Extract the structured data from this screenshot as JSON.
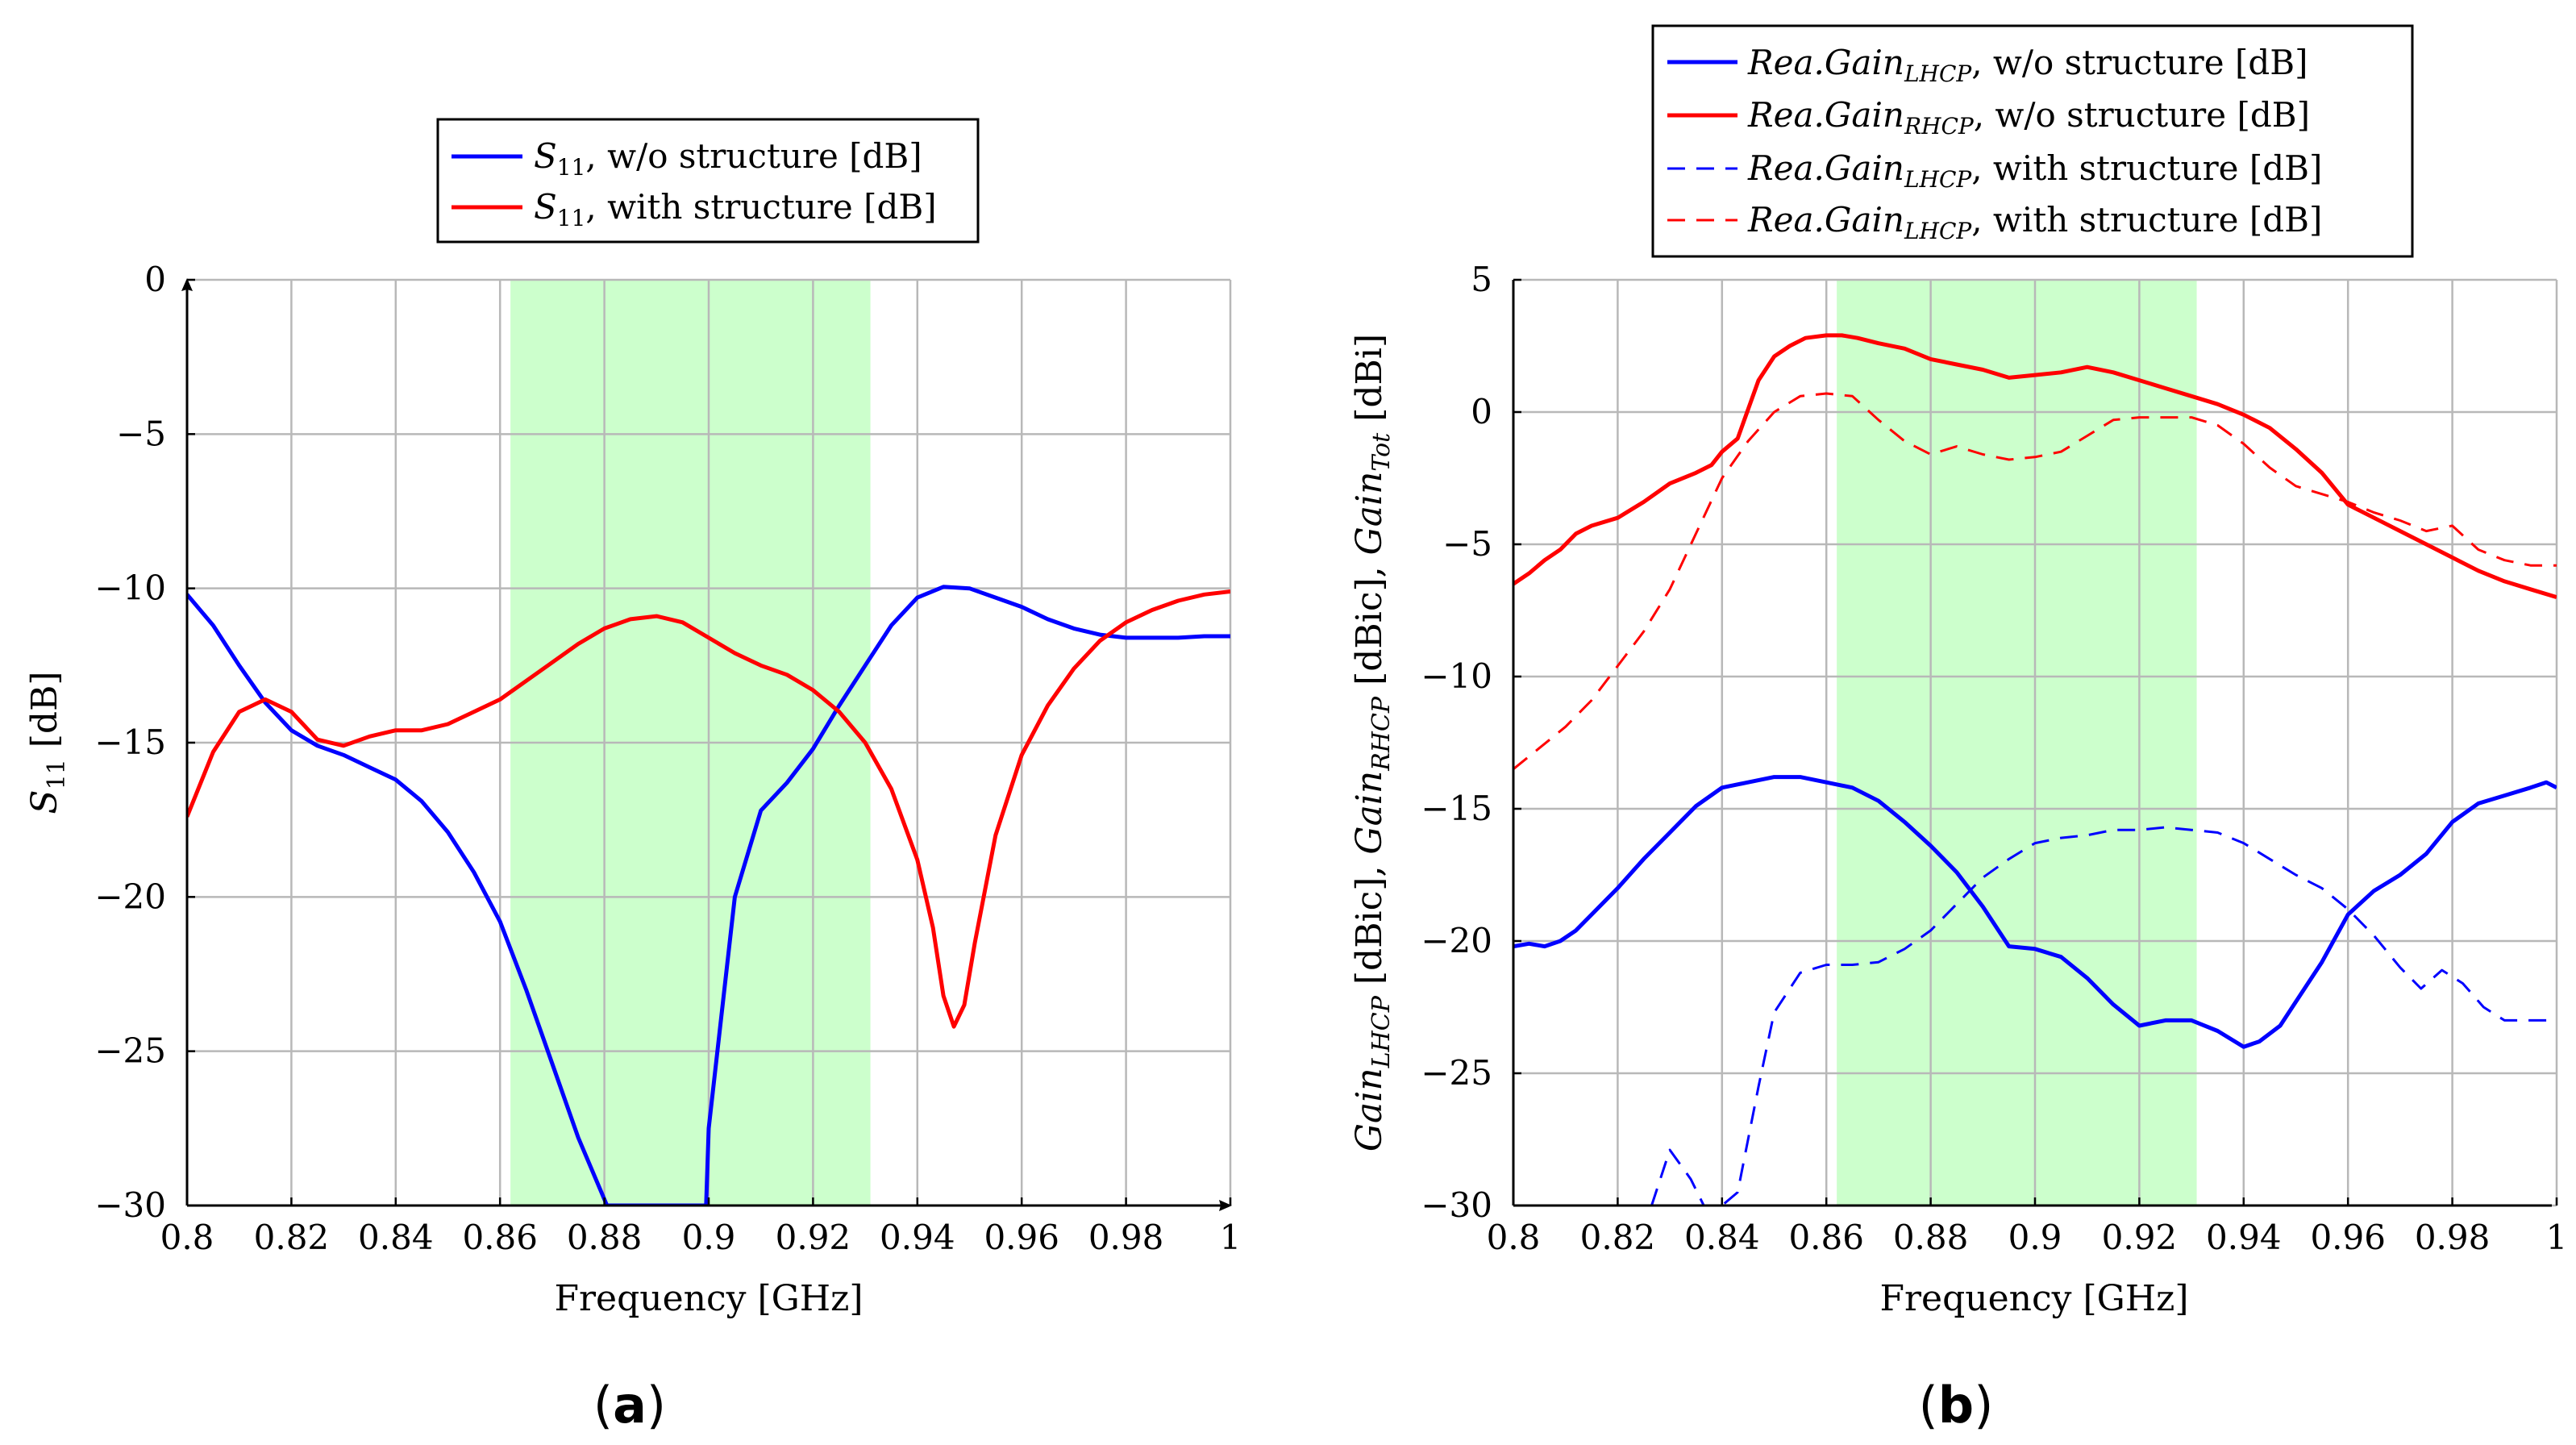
{
  "chart_data": [
    {
      "type": "line",
      "id": "a",
      "caption_open": "(",
      "caption_letter": "a",
      "caption_close": ")",
      "title": "",
      "xlabel": "Frequency [GHz]",
      "ylabel": "S11 [dB]",
      "xlim": [
        0.8,
        1.0
      ],
      "ylim": [
        -30,
        0
      ],
      "xticks": [
        0.8,
        0.82,
        0.84,
        0.86,
        0.88,
        0.9,
        0.92,
        0.94,
        0.96,
        0.98,
        1.0
      ],
      "xtick_labels": [
        "0.8",
        "0.82",
        "0.84",
        "0.86",
        "0.88",
        "0.9",
        "0.92",
        "0.94",
        "0.96",
        "0.98",
        "1"
      ],
      "yticks": [
        0,
        -5,
        -10,
        -15,
        -20,
        -25,
        -30
      ],
      "ytick_labels": [
        "0",
        "−5",
        "−10",
        "−15",
        "−20",
        "−25",
        "−30"
      ],
      "grid": true,
      "legend_position": "top-center",
      "shaded_band": {
        "x_start": 0.862,
        "x_end": 0.931,
        "color": "#ccffcc"
      },
      "series": [
        {
          "name": "S11, w/o structure [dB]",
          "color": "#0000ff",
          "style": "solid",
          "x": [
            0.8,
            0.805,
            0.81,
            0.815,
            0.82,
            0.825,
            0.83,
            0.835,
            0.84,
            0.845,
            0.85,
            0.855,
            0.86,
            0.865,
            0.87,
            0.875,
            0.88,
            0.8805,
            0.8995,
            0.9,
            0.905,
            0.91,
            0.915,
            0.92,
            0.925,
            0.93,
            0.935,
            0.94,
            0.945,
            0.95,
            0.955,
            0.96,
            0.965,
            0.97,
            0.975,
            0.98,
            0.985,
            0.99,
            0.995,
            1.0
          ],
          "values": [
            -10.2,
            -11.2,
            -12.5,
            -13.7,
            -14.6,
            -15.1,
            -15.4,
            -15.8,
            -16.2,
            -16.9,
            -17.9,
            -19.2,
            -20.8,
            -23.0,
            -25.4,
            -27.8,
            -29.8,
            -30.0,
            -30.0,
            -27.5,
            -20.0,
            -17.2,
            -16.3,
            -15.2,
            -13.8,
            -12.5,
            -11.2,
            -10.3,
            -9.95,
            -10.0,
            -10.3,
            -10.6,
            -11.0,
            -11.3,
            -11.5,
            -11.6,
            -11.6,
            -11.6,
            -11.55,
            -11.55
          ]
        },
        {
          "name": "S11, with structure [dB]",
          "color": "#ff0000",
          "style": "solid",
          "x": [
            0.8,
            0.805,
            0.81,
            0.815,
            0.82,
            0.825,
            0.83,
            0.835,
            0.84,
            0.845,
            0.85,
            0.855,
            0.86,
            0.865,
            0.87,
            0.875,
            0.88,
            0.885,
            0.89,
            0.895,
            0.9,
            0.905,
            0.91,
            0.915,
            0.92,
            0.925,
            0.93,
            0.935,
            0.94,
            0.943,
            0.945,
            0.947,
            0.949,
            0.951,
            0.955,
            0.96,
            0.965,
            0.97,
            0.975,
            0.98,
            0.985,
            0.99,
            0.995,
            1.0
          ],
          "values": [
            -17.4,
            -15.3,
            -14.0,
            -13.6,
            -14.0,
            -14.9,
            -15.1,
            -14.8,
            -14.6,
            -14.6,
            -14.4,
            -14.0,
            -13.6,
            -13.0,
            -12.4,
            -11.8,
            -11.3,
            -11.0,
            -10.9,
            -11.1,
            -11.6,
            -12.1,
            -12.5,
            -12.8,
            -13.3,
            -14.0,
            -15.0,
            -16.5,
            -18.8,
            -21.0,
            -23.2,
            -24.2,
            -23.5,
            -21.5,
            -18.0,
            -15.4,
            -13.8,
            -12.6,
            -11.7,
            -11.1,
            -10.7,
            -10.4,
            -10.2,
            -10.1
          ]
        }
      ]
    },
    {
      "type": "line",
      "id": "b",
      "caption_open": "(",
      "caption_letter": "b",
      "caption_close": ")",
      "title": "",
      "xlabel": "Frequency [GHz]",
      "ylabel": "GainLHCP [dBic], GainRHCP [dBic], GainTot [dBi]",
      "xlim": [
        0.8,
        1.0
      ],
      "ylim": [
        -30,
        5
      ],
      "xticks": [
        0.8,
        0.82,
        0.84,
        0.86,
        0.88,
        0.9,
        0.92,
        0.94,
        0.96,
        0.98,
        1.0
      ],
      "xtick_labels": [
        "0.8",
        "0.82",
        "0.84",
        "0.86",
        "0.88",
        "0.9",
        "0.92",
        "0.94",
        "0.96",
        "0.98",
        "1"
      ],
      "yticks": [
        5,
        0,
        -5,
        -10,
        -15,
        -20,
        -25,
        -30
      ],
      "ytick_labels": [
        "5",
        "0",
        "−5",
        "−10",
        "−15",
        "−20",
        "−25",
        "−30"
      ],
      "grid": true,
      "legend_position": "top-center",
      "shaded_band": {
        "x_start": 0.862,
        "x_end": 0.931,
        "color": "#ccffcc"
      },
      "series": [
        {
          "name": "Rea.GainLHCP, w/o structure [dB]",
          "color": "#0000ff",
          "style": "solid",
          "x": [
            0.8,
            0.803,
            0.806,
            0.809,
            0.812,
            0.815,
            0.82,
            0.825,
            0.83,
            0.835,
            0.84,
            0.845,
            0.85,
            0.855,
            0.86,
            0.865,
            0.87,
            0.875,
            0.88,
            0.885,
            0.89,
            0.895,
            0.9,
            0.905,
            0.91,
            0.915,
            0.92,
            0.925,
            0.93,
            0.935,
            0.94,
            0.943,
            0.947,
            0.95,
            0.955,
            0.96,
            0.965,
            0.97,
            0.975,
            0.98,
            0.985,
            0.99,
            0.995,
            0.998,
            1.0
          ],
          "values": [
            -20.2,
            -20.1,
            -20.2,
            -20.0,
            -19.6,
            -19.0,
            -18.0,
            -16.9,
            -15.9,
            -14.9,
            -14.2,
            -14.0,
            -13.8,
            -13.8,
            -14.0,
            -14.2,
            -14.7,
            -15.5,
            -16.4,
            -17.4,
            -18.7,
            -20.2,
            -20.3,
            -20.6,
            -21.4,
            -22.4,
            -23.2,
            -23.0,
            -23.0,
            -23.4,
            -24.0,
            -23.8,
            -23.2,
            -22.3,
            -20.8,
            -19.0,
            -18.1,
            -17.5,
            -16.7,
            -15.5,
            -14.8,
            -14.5,
            -14.2,
            -14.0,
            -14.2
          ]
        },
        {
          "name": "Rea.GainRHCP, w/o structure [dB]",
          "color": "#ff0000",
          "style": "solid",
          "x": [
            0.8,
            0.803,
            0.806,
            0.809,
            0.812,
            0.815,
            0.82,
            0.825,
            0.83,
            0.835,
            0.838,
            0.84,
            0.843,
            0.847,
            0.85,
            0.853,
            0.856,
            0.86,
            0.863,
            0.866,
            0.87,
            0.875,
            0.88,
            0.885,
            0.89,
            0.895,
            0.9,
            0.905,
            0.91,
            0.915,
            0.92,
            0.925,
            0.93,
            0.935,
            0.94,
            0.945,
            0.95,
            0.955,
            0.96,
            0.965,
            0.97,
            0.975,
            0.98,
            0.985,
            0.99,
            0.995,
            1.0
          ],
          "values": [
            -6.5,
            -6.1,
            -5.6,
            -5.2,
            -4.6,
            -4.3,
            -4.0,
            -3.4,
            -2.7,
            -2.3,
            -2.0,
            -1.5,
            -1.0,
            1.2,
            2.1,
            2.5,
            2.8,
            2.9,
            2.9,
            2.8,
            2.6,
            2.4,
            2.0,
            1.8,
            1.6,
            1.3,
            1.4,
            1.5,
            1.7,
            1.5,
            1.2,
            0.9,
            0.6,
            0.3,
            -0.1,
            -0.6,
            -1.4,
            -2.3,
            -3.5,
            -4.0,
            -4.5,
            -5.0,
            -5.5,
            -6.0,
            -6.4,
            -6.7,
            -7.0
          ]
        },
        {
          "name": "Rea.GainLHCP, with structure [dB]",
          "color": "#0000ff",
          "style": "dashed",
          "x": [
            0.8265,
            0.83,
            0.834,
            0.8365,
            0.84,
            0.843,
            0.847,
            0.85,
            0.855,
            0.86,
            0.865,
            0.87,
            0.875,
            0.88,
            0.885,
            0.89,
            0.895,
            0.9,
            0.905,
            0.91,
            0.915,
            0.92,
            0.925,
            0.93,
            0.935,
            0.94,
            0.945,
            0.95,
            0.955,
            0.96,
            0.965,
            0.97,
            0.974,
            0.978,
            0.982,
            0.986,
            0.99,
            0.995,
            1.0
          ],
          "values": [
            -30.0,
            -27.9,
            -29.0,
            -30.0,
            -30.0,
            -29.5,
            -25.5,
            -22.7,
            -21.2,
            -20.9,
            -20.9,
            -20.8,
            -20.3,
            -19.6,
            -18.6,
            -17.6,
            -16.9,
            -16.3,
            -16.1,
            -16.0,
            -15.8,
            -15.8,
            -15.7,
            -15.8,
            -15.9,
            -16.3,
            -16.9,
            -17.5,
            -18.0,
            -18.8,
            -19.8,
            -21.0,
            -21.8,
            -21.1,
            -21.6,
            -22.5,
            -23.0,
            -23.0,
            -23.0
          ]
        },
        {
          "name": "Rea.GainLHCP, with structure [dB]",
          "color": "#ff0000",
          "style": "dashed",
          "x": [
            0.8,
            0.805,
            0.81,
            0.815,
            0.82,
            0.825,
            0.83,
            0.835,
            0.84,
            0.845,
            0.85,
            0.855,
            0.86,
            0.865,
            0.87,
            0.875,
            0.88,
            0.885,
            0.89,
            0.895,
            0.9,
            0.905,
            0.91,
            0.915,
            0.92,
            0.925,
            0.93,
            0.935,
            0.94,
            0.945,
            0.95,
            0.955,
            0.96,
            0.965,
            0.97,
            0.975,
            0.98,
            0.985,
            0.99,
            0.995,
            1.0
          ],
          "values": [
            -13.5,
            -12.7,
            -11.9,
            -10.9,
            -9.6,
            -8.3,
            -6.7,
            -4.6,
            -2.5,
            -1.1,
            0.0,
            0.6,
            0.7,
            0.6,
            -0.3,
            -1.1,
            -1.6,
            -1.3,
            -1.6,
            -1.8,
            -1.7,
            -1.5,
            -0.9,
            -0.3,
            -0.2,
            -0.2,
            -0.2,
            -0.5,
            -1.2,
            -2.1,
            -2.8,
            -3.1,
            -3.4,
            -3.8,
            -4.1,
            -4.5,
            -4.3,
            -5.2,
            -5.6,
            -5.8,
            -5.8
          ]
        }
      ]
    }
  ]
}
